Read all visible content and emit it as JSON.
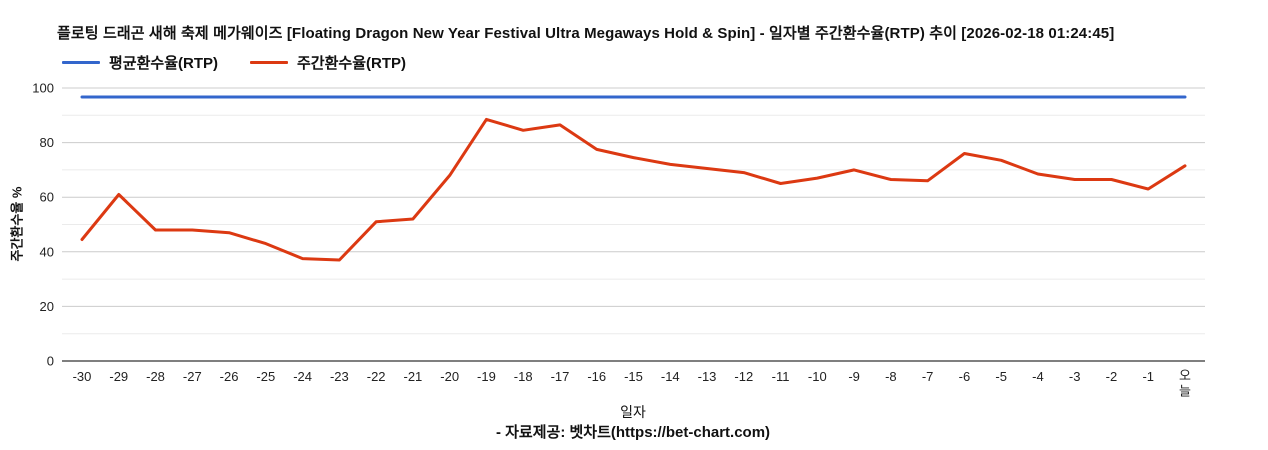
{
  "header": {
    "title": "플로팅 드래곤 새해 축제 메가웨이즈 [Floating Dragon New Year Festival Ultra Megaways Hold & Spin] - 일자별 주간환수율(RTP) 추이 [2026-02-18 01:24:45]"
  },
  "legend": [
    {
      "label": "평균환수율(RTP)",
      "color": "#3366cc"
    },
    {
      "label": "주간환수율(RTP)",
      "color": "#dc3912"
    }
  ],
  "axes": {
    "y_title": "주간환수율 %",
    "x_title": "일자"
  },
  "footer": {
    "credit": "- 자료제공: 벳차트(https://bet-chart.com)"
  },
  "colors": {
    "average_line": "#3366cc",
    "weekly_line": "#dc3912",
    "major_gridline": "#cccccc",
    "minor_gridline": "#ebebeb",
    "axis_baseline": "#333333",
    "tick_label": "#222222"
  },
  "chart_data": {
    "type": "line",
    "title": "플로팅 드래곤 새해 축제 메가웨이즈 [Floating Dragon New Year Festival Ultra Megaways Hold & Spin] - 일자별 주간환수율(RTP) 추이 [2026-02-18 01:24:45]",
    "xlabel": "일자",
    "ylabel": "주간환수율 %",
    "ylim": [
      0,
      100
    ],
    "y_ticks": [
      0,
      20,
      40,
      60,
      80,
      100
    ],
    "y_minor_step": 10,
    "grid": "horizontal major+minor",
    "legend_position": "top-left",
    "categories": [
      "-30",
      "-29",
      "-28",
      "-27",
      "-26",
      "-25",
      "-24",
      "-23",
      "-22",
      "-21",
      "-20",
      "-19",
      "-18",
      "-17",
      "-16",
      "-15",
      "-14",
      "-13",
      "-12",
      "-11",
      "-10",
      "-9",
      "-8",
      "-7",
      "-6",
      "-5",
      "-4",
      "-3",
      "-2",
      "-1",
      "오늘"
    ],
    "stacked_last_label": true,
    "series": [
      {
        "name": "평균환수율(RTP)",
        "color": "#3366cc",
        "values": [
          96.7,
          96.7,
          96.7,
          96.7,
          96.7,
          96.7,
          96.7,
          96.7,
          96.7,
          96.7,
          96.7,
          96.7,
          96.7,
          96.7,
          96.7,
          96.7,
          96.7,
          96.7,
          96.7,
          96.7,
          96.7,
          96.7,
          96.7,
          96.7,
          96.7,
          96.7,
          96.7,
          96.7,
          96.7,
          96.7,
          96.7
        ]
      },
      {
        "name": "주간환수율(RTP)",
        "color": "#dc3912",
        "values": [
          44.5,
          61,
          48,
          48,
          47,
          43,
          37.5,
          37,
          51,
          52,
          68,
          88.5,
          84.5,
          86.5,
          77.5,
          74.5,
          72,
          70.5,
          69,
          65,
          67,
          70,
          66.5,
          66,
          76,
          73.5,
          68.5,
          66.5,
          66.5,
          63,
          71.5
        ]
      }
    ]
  }
}
